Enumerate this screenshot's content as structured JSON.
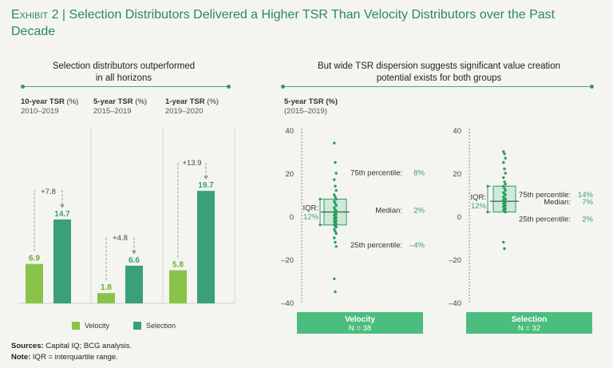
{
  "header": {
    "exhibit": "Exhibit 2",
    "separator": "|",
    "title": "Selection Distributors Delivered a Higher TSR Than Velocity Distributors over the Past Decade"
  },
  "left_section": {
    "title_line1": "Selection distributors outperformed",
    "title_line2": "in all horizons"
  },
  "right_section": {
    "title_line1": "But wide TSR dispersion suggests significant value creation",
    "title_line2": "potential exists for both groups",
    "ylabel": "5-year TSR (%)",
    "yperiod": "(2015–2019)"
  },
  "legend": {
    "velocity": "Velocity",
    "selection": "Selection"
  },
  "colors": {
    "velocity": "#8bc34a",
    "selection": "#3aa07a",
    "accent": "#2a9d5d",
    "label_green": "#3aa07a",
    "band": "#3ab36b"
  },
  "chart_data": [
    {
      "type": "bar",
      "title": "Selection distributors outperformed in all horizons",
      "categories": [
        "10-year TSR (%)",
        "5-year TSR (%)",
        "1-year TSR (%)"
      ],
      "panels": [
        {
          "label": "10-year TSR",
          "unit": "(%)",
          "period": "2010–2019",
          "velocity": 6.9,
          "selection": 14.7,
          "velocity_label": "6.9",
          "selection_label": "14.7",
          "diff": "+7.8"
        },
        {
          "label": "5-year TSR",
          "unit": "(%)",
          "period": "2015–2019",
          "velocity": 1.8,
          "selection": 6.6,
          "velocity_label": "1.8",
          "selection_label": "6.6",
          "diff": "+4.8"
        },
        {
          "label": "1-year TSR",
          "unit": "(%)",
          "period": "2019–2020",
          "velocity": 5.8,
          "selection": 19.7,
          "velocity_label": "5.8",
          "selection_label": "19.7",
          "diff": "+13.9"
        }
      ],
      "series": [
        {
          "name": "Velocity",
          "values": [
            6.9,
            1.8,
            5.8
          ]
        },
        {
          "name": "Selection",
          "values": [
            14.7,
            6.6,
            19.7
          ]
        }
      ],
      "ylim": [
        0,
        22
      ]
    },
    {
      "type": "scatter",
      "title": "But wide TSR dispersion suggests significant value creation potential exists for both groups",
      "ylabel": "5-year TSR (%)",
      "ylim": [
        -40,
        40
      ],
      "yticks": [
        "40",
        "20",
        "0",
        "–20",
        "–40"
      ],
      "ytick_values": [
        40,
        20,
        0,
        -20,
        -40
      ],
      "groups": [
        {
          "name": "Velocity",
          "n_label": "N = 38",
          "p75": 8,
          "median": 2,
          "p25": -4,
          "p75_label": "75th percentile:",
          "p75_value": "8%",
          "median_label": "Median:",
          "median_value": "2%",
          "p25_label": "25th percentile:",
          "p25_value": "–4%",
          "iqr_label": "IQR:",
          "iqr_value": "12%",
          "points": [
            34,
            25,
            20,
            17,
            14,
            12,
            10,
            9,
            8,
            7,
            6,
            5,
            4,
            3,
            2.5,
            2,
            1.5,
            1,
            0.5,
            0,
            -0.5,
            -1,
            -1.5,
            -2,
            -2.5,
            -3,
            -3.5,
            -4,
            -4.5,
            -5,
            -6,
            -7,
            -8,
            -10,
            -12,
            -14,
            -29,
            -35
          ]
        },
        {
          "name": "Selection",
          "n_label": "N = 32",
          "p75": 14,
          "median": 7,
          "p25": 2,
          "p75_label": "75th percentile:",
          "p75_value": "14%",
          "median_label": "Median:",
          "median_value": "7%",
          "p25_label": "25th percentile:",
          "p25_value": "2%",
          "iqr_label": "IQR:",
          "iqr_value": "12%",
          "points": [
            30,
            29,
            27,
            25,
            22,
            20,
            18,
            16,
            15,
            14,
            13,
            12,
            11,
            10.5,
            10,
            9,
            8.5,
            8,
            7.5,
            7,
            6.5,
            6,
            5.5,
            5,
            4.5,
            4,
            3.5,
            3,
            2.5,
            2,
            -12,
            -15
          ]
        }
      ]
    }
  ],
  "footer": {
    "sources_label": "Sources:",
    "sources_text": "Capital IQ; BCG analysis.",
    "note_label": "Note:",
    "note_text": "IQR = interquartile range."
  }
}
